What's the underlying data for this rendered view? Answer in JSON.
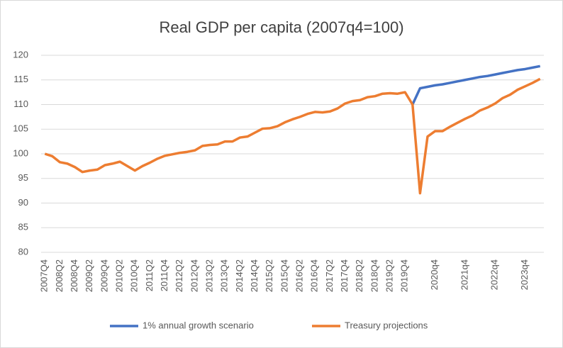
{
  "chart_data": {
    "type": "line",
    "title": "Real GDP per capita (2007q4=100)",
    "categories": [
      "2007Q4",
      null,
      "2008Q2",
      null,
      "2008Q4",
      null,
      "2009Q2",
      null,
      "2009Q4",
      null,
      "2010Q2",
      null,
      "2010Q4",
      null,
      "2011Q2",
      null,
      "2011Q4",
      null,
      "2012Q2",
      null,
      "2012Q4",
      null,
      "2013Q2",
      null,
      "2013Q4",
      null,
      "2014Q2",
      null,
      "2014Q4",
      null,
      "2015Q2",
      null,
      "2015Q4",
      null,
      "2016Q2",
      null,
      "2016Q4",
      null,
      "2017Q2",
      null,
      "2017Q4",
      null,
      "2018Q2",
      null,
      "2018Q4",
      null,
      "2019Q2",
      null,
      "2019Q4",
      null,
      null,
      null,
      "2020q4",
      null,
      null,
      null,
      "2021q4",
      null,
      null,
      null,
      "2022q4",
      null,
      null,
      null,
      "2023q4",
      null,
      null
    ],
    "series": [
      {
        "name": "1% annual growth scenario",
        "color": "#4472c4",
        "values": [
          null,
          null,
          null,
          null,
          null,
          null,
          null,
          null,
          null,
          null,
          null,
          null,
          null,
          null,
          null,
          null,
          null,
          null,
          null,
          null,
          null,
          null,
          null,
          null,
          null,
          null,
          null,
          null,
          null,
          null,
          null,
          null,
          null,
          null,
          null,
          null,
          null,
          null,
          null,
          null,
          null,
          null,
          null,
          null,
          null,
          null,
          null,
          null,
          null,
          110.0,
          113.3,
          113.6,
          113.9,
          114.1,
          114.4,
          114.7,
          115.0,
          115.3,
          115.6,
          115.8,
          116.1,
          116.4,
          116.7,
          117.0,
          117.2,
          117.5,
          117.8
        ]
      },
      {
        "name": "Treasury projections",
        "color": "#ed7d31",
        "values": [
          100.0,
          99.5,
          98.3,
          98.0,
          97.3,
          96.3,
          96.6,
          96.8,
          97.7,
          98.0,
          98.4,
          97.5,
          96.6,
          97.5,
          98.2,
          99.0,
          99.6,
          99.9,
          100.2,
          100.4,
          100.7,
          101.6,
          101.8,
          101.9,
          102.5,
          102.5,
          103.3,
          103.5,
          104.3,
          105.1,
          105.2,
          105.6,
          106.4,
          107.0,
          107.5,
          108.1,
          108.5,
          108.4,
          108.6,
          109.2,
          110.2,
          110.7,
          110.9,
          111.5,
          111.7,
          112.2,
          112.3,
          112.2,
          112.5,
          110.0,
          92.0,
          103.5,
          104.6,
          104.6,
          105.5,
          106.3,
          107.1,
          107.8,
          108.8,
          109.4,
          110.2,
          111.3,
          112.0,
          113.0,
          113.7,
          114.4,
          115.2
        ]
      }
    ],
    "ylim": [
      80,
      120
    ],
    "yticks": [
      80,
      85,
      90,
      95,
      100,
      105,
      110,
      115,
      120
    ],
    "grid": true,
    "legend": "bottom"
  }
}
